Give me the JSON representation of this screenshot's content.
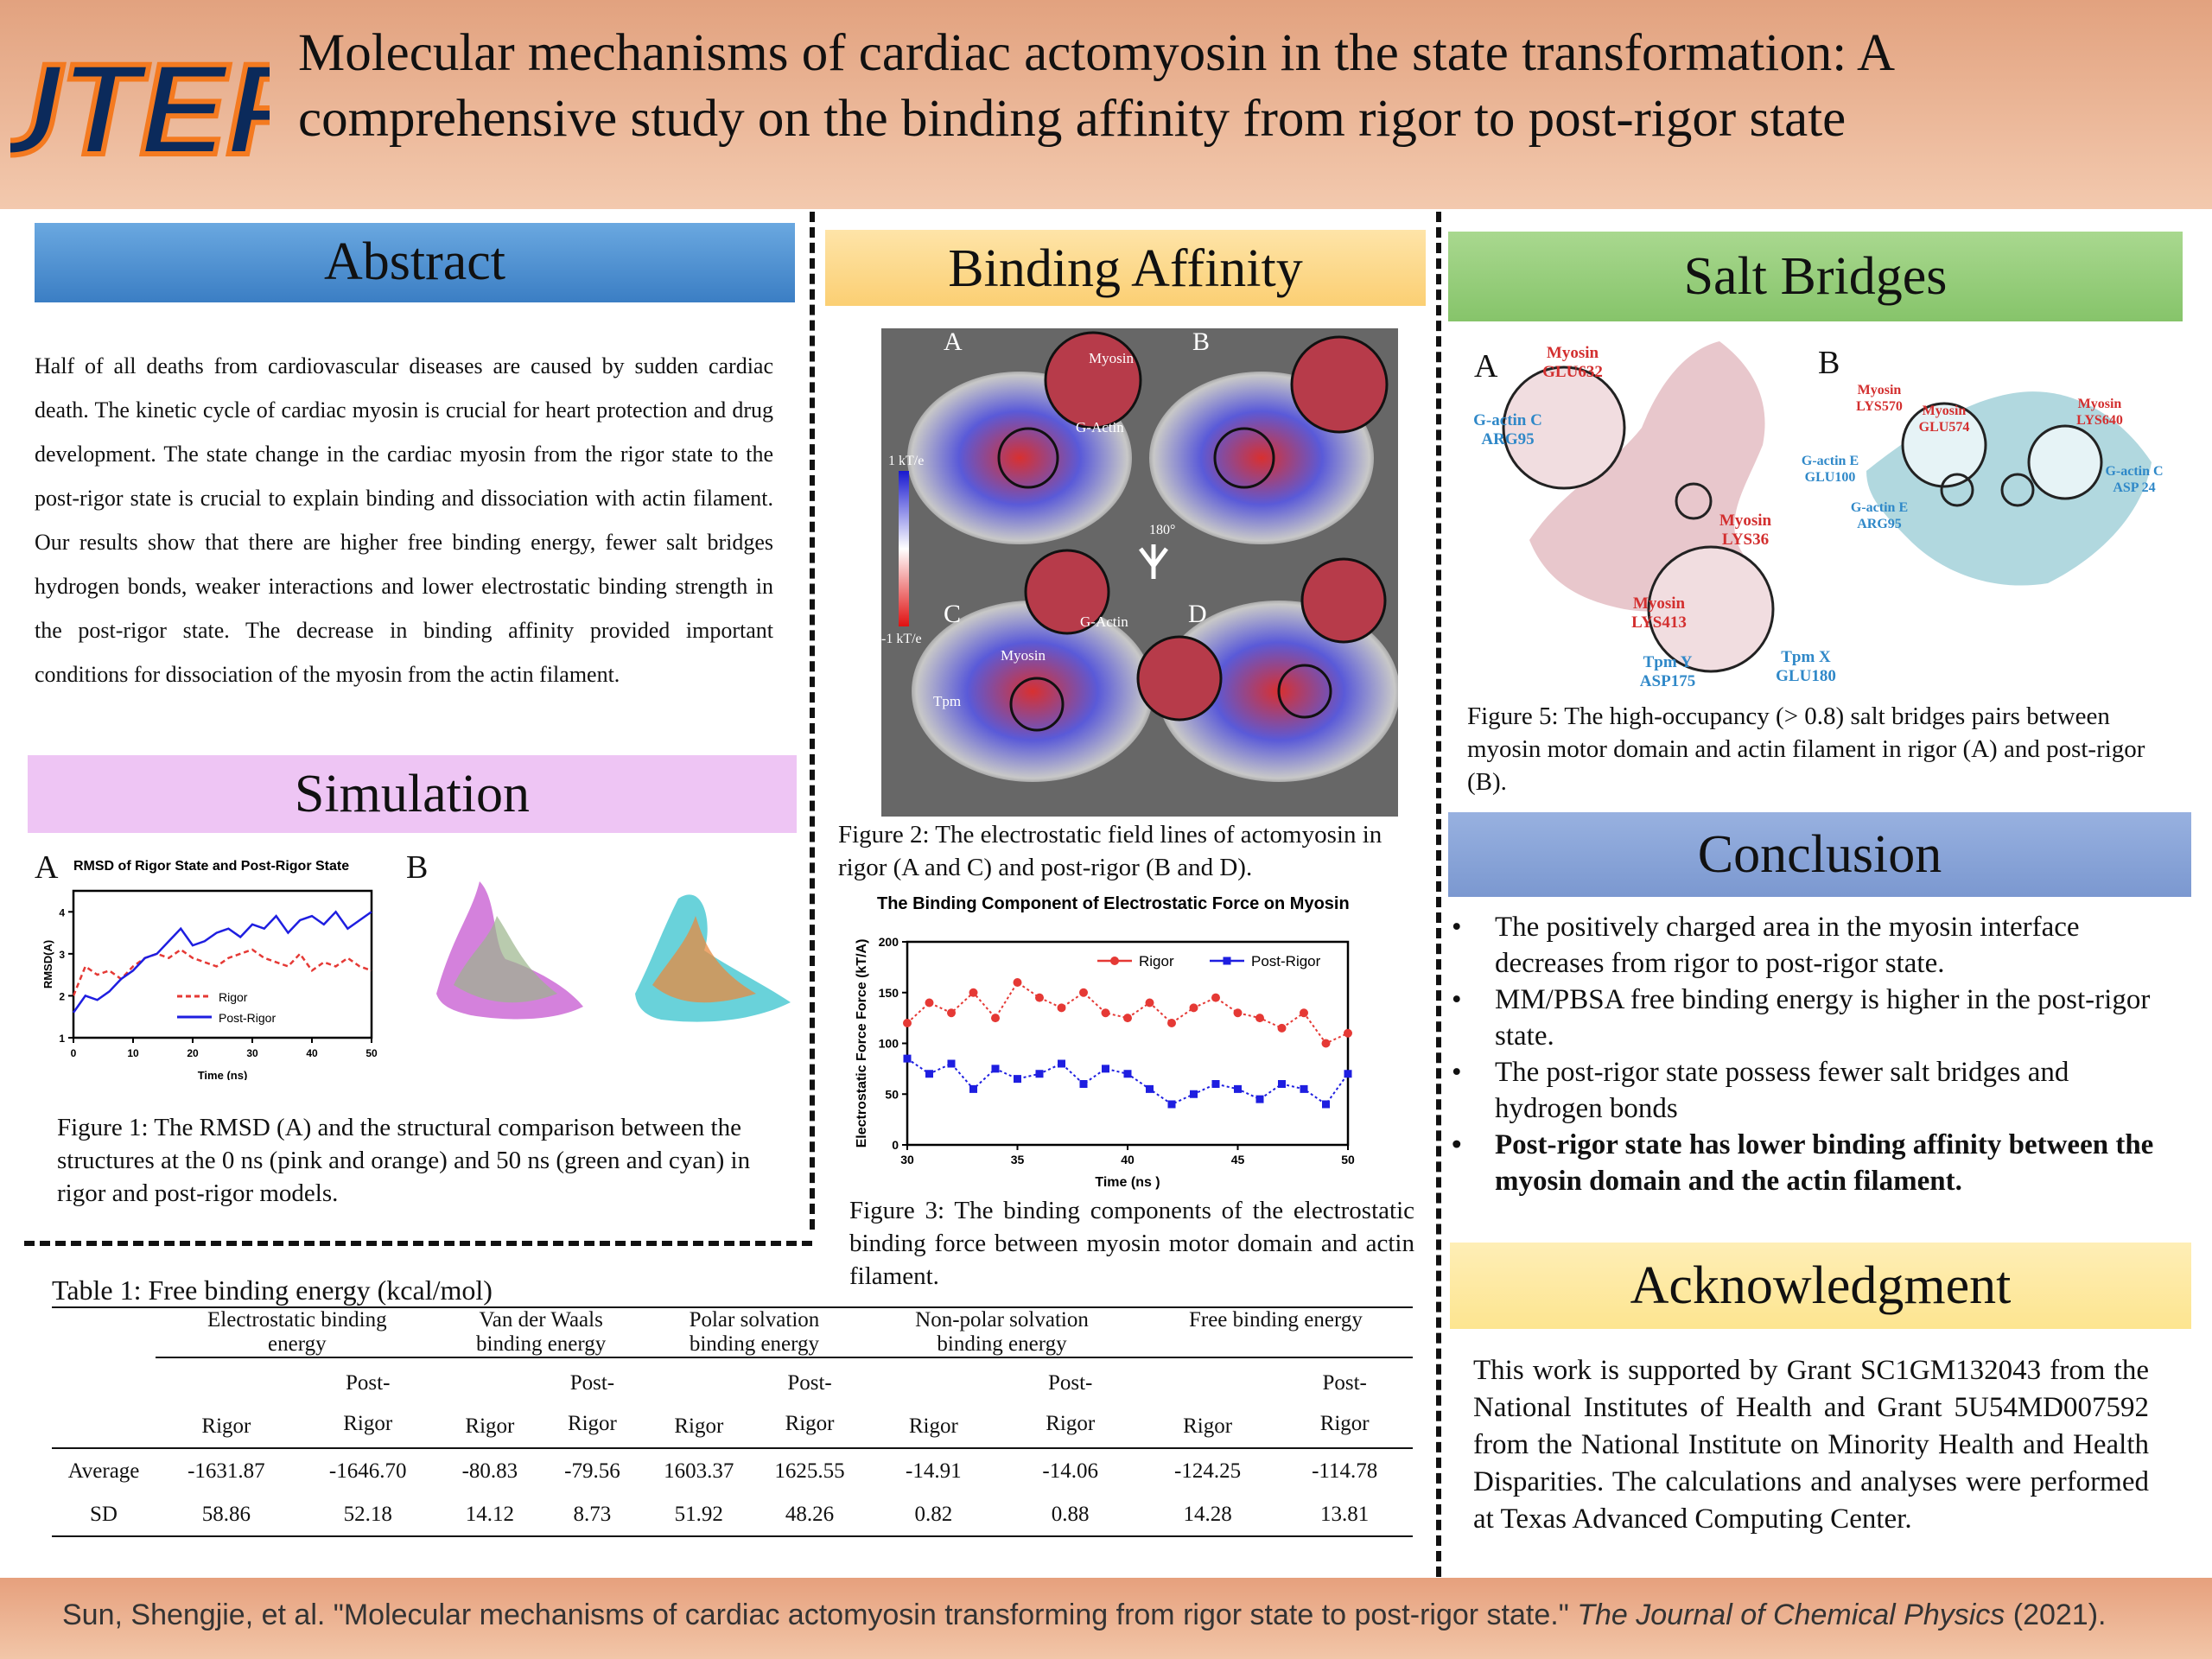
{
  "header": {
    "logo_text": "UTEP",
    "title_line1": "Molecular mechanisms of cardiac actomyosin in the state transformation: A",
    "title_line2": "comprehensive study on the binding affinity from rigor to post-rigor state"
  },
  "colors": {
    "abstract_band": "#5b9bd5",
    "simulation_band": "#eec5f4",
    "binding_band": "#fcd98e",
    "salt_band": "#9fd184",
    "conclusion_band": "#8ea9db",
    "ack_band": "#fde9a0",
    "rigor": "#e53935",
    "post_rigor": "#1e1ee0"
  },
  "abstract": {
    "heading": "Abstract",
    "text": "Half of all deaths from cardiovascular diseases are caused by sudden cardiac death. The kinetic cycle of cardiac myosin is crucial for heart protection and drug development. The state change in the cardiac myosin from the rigor state to the post-rigor state is crucial to explain binding and dissociation with actin filament. Our results show that there are higher free binding energy, fewer salt bridges hydrogen bonds, weaker interactions and lower electrostatic binding strength in the post-rigor state. The decrease in binding affinity provided important conditions for dissociation of the myosin from the actin filament."
  },
  "simulation": {
    "heading": "Simulation",
    "panel_a": "A",
    "panel_b": "B",
    "caption": "Figure 1: The RMSD (A) and the structural comparison between the structures at the 0 ns (pink and orange) and 50 ns (green and cyan) in rigor and post-rigor models."
  },
  "binding": {
    "heading": "Binding Affinity",
    "fig2_labels": {
      "a": "A",
      "b": "B",
      "c": "C",
      "d": "D",
      "myosin": "Myosin",
      "gactin": "G-Actin",
      "tpm": "Tpm",
      "scale_top": "1 kT/e",
      "scale_bot": "-1 kT/e",
      "rotation": "180°"
    },
    "fig2_caption": "Figure 2: The electrostatic field lines of actomyosin in rigor (A and C) and post-rigor (B and D).",
    "fig3_caption": "Figure 3: The binding components of the electrostatic binding force between myosin motor domain and actin filament."
  },
  "salt": {
    "heading": "Salt Bridges",
    "panel_a": "A",
    "panel_b": "B",
    "labels_a": {
      "myosin_glu": "Myosin\nGLU632",
      "gactin_arg": "G-actin C\nARG95",
      "myosin_lys36": "Myosin\nLYS36",
      "myosin_lys413": "Myosin\nLYS413",
      "tpm_y": "Tpm Y\nASP175",
      "tpm_x": "Tpm X\nGLU180"
    },
    "labels_b": {
      "myosin_lys570": "Myosin\nLYS570",
      "myosin_glu574": "Myosin\nGLU574",
      "myosin_lys640": "Myosin\nLYS640",
      "gactin_e_glu": "G-actin E\nGLU100",
      "gactin_e_arg": "G-actin E\nARG95",
      "gactin_c_asp": "G-actin C\nASP 24"
    },
    "caption": "Figure 5: The high-occupancy (> 0.8) salt bridges pairs between myosin motor domain and actin filament in rigor (A) and post-rigor (B)."
  },
  "conclusion": {
    "heading": "Conclusion",
    "items": [
      "The positively charged area in the myosin interface decreases from rigor to post-rigor state.",
      "MM/PBSA free binding energy is higher in the post-rigor state.",
      "The post-rigor state possess fewer salt bridges and hydrogen bonds",
      "Post-rigor state has lower binding affinity between the myosin domain and the actin filament."
    ]
  },
  "acknowledgment": {
    "heading": "Acknowledgment",
    "text": "This work is supported by Grant SC1GM132043 from the National Institutes of Health and Grant 5U54MD007592 from the National Institute on Minority Health and Health Disparities. The calculations and analyses were performed at Texas Advanced Computing Center."
  },
  "table": {
    "caption": "Table 1: Free binding energy (kcal/mol)",
    "groups": [
      {
        "line1": "Electrostatic binding",
        "line2": "energy"
      },
      {
        "line1": "Van der Waals",
        "line2": "binding energy"
      },
      {
        "line1": "Polar solvation",
        "line2": "binding energy"
      },
      {
        "line1": "Non-polar solvation",
        "line2": "binding energy"
      },
      {
        "line1": "Free binding energy",
        "line2": ""
      }
    ],
    "sub_rigor": "Rigor",
    "sub_post_1": "Post-",
    "sub_post_2": "Rigor",
    "rows": [
      {
        "label": "Average",
        "values": [
          "-1631.87",
          "-1646.70",
          "-80.83",
          "-79.56",
          "1603.37",
          "1625.55",
          "-14.91",
          "-14.06",
          "-124.25",
          "-114.78"
        ]
      },
      {
        "label": "SD",
        "values": [
          "58.86",
          "52.18",
          "14.12",
          "8.73",
          "51.92",
          "48.26",
          "0.82",
          "0.88",
          "14.28",
          "13.81"
        ]
      }
    ]
  },
  "footer": {
    "citation_main": "Sun, Shengjie, et al. \"Molecular mechanisms of cardiac actomyosin transforming from rigor state to post-rigor state.\" ",
    "citation_journal": "The Journal of Chemical Physics",
    "citation_year": " (2021)."
  },
  "chart_data": [
    {
      "type": "line",
      "title": "RMSD of Rigor State and Post-Rigor State",
      "xlabel": "Time (ns)",
      "ylabel": "RMSD(A)",
      "xlim": [
        0,
        50
      ],
      "ylim": [
        1,
        4.5
      ],
      "xticks": [
        "0",
        "10",
        "20",
        "30",
        "40",
        "50"
      ],
      "yticks": [
        "1",
        "2",
        "3",
        "4"
      ],
      "legend_position": "bottom-left",
      "x": [
        0,
        2,
        4,
        6,
        8,
        10,
        12,
        14,
        16,
        18,
        20,
        22,
        24,
        26,
        28,
        30,
        32,
        34,
        36,
        38,
        40,
        42,
        44,
        46,
        48,
        50
      ],
      "series": [
        {
          "name": "Rigor",
          "style": "dashed",
          "values": [
            2.0,
            2.7,
            2.5,
            2.6,
            2.4,
            2.7,
            2.9,
            3.0,
            2.9,
            3.1,
            2.9,
            2.8,
            2.7,
            2.9,
            3.0,
            3.1,
            2.9,
            2.8,
            2.7,
            3.0,
            2.6,
            2.8,
            2.7,
            2.9,
            2.7,
            2.6
          ]
        },
        {
          "name": "Post-Rigor",
          "style": "solid",
          "values": [
            1.6,
            2.0,
            1.9,
            2.1,
            2.4,
            2.6,
            2.9,
            3.0,
            3.3,
            3.6,
            3.2,
            3.3,
            3.5,
            3.6,
            3.4,
            3.7,
            3.6,
            3.9,
            3.5,
            3.8,
            3.9,
            3.7,
            4.0,
            3.6,
            3.8,
            4.0
          ]
        }
      ]
    },
    {
      "type": "line",
      "title": "The Binding Component of Electrostatic Force on Myosin",
      "xlabel": "Time (ns )",
      "ylabel": "Electrostatic Force Force (kT/A)",
      "xlim": [
        30,
        50
      ],
      "ylim": [
        0,
        200
      ],
      "xticks": [
        "30",
        "35",
        "40",
        "45",
        "50"
      ],
      "yticks": [
        "0",
        "50",
        "100",
        "150",
        "200"
      ],
      "legend_position": "top-right",
      "x": [
        30,
        31,
        32,
        33,
        34,
        35,
        36,
        37,
        38,
        39,
        40,
        41,
        42,
        43,
        44,
        45,
        46,
        47,
        48,
        49,
        50
      ],
      "series": [
        {
          "name": "Rigor",
          "values": [
            120,
            140,
            130,
            150,
            125,
            160,
            145,
            135,
            150,
            130,
            125,
            140,
            120,
            135,
            145,
            130,
            125,
            115,
            130,
            100,
            110
          ]
        },
        {
          "name": "Post-Rigor",
          "values": [
            85,
            70,
            80,
            55,
            75,
            65,
            70,
            80,
            60,
            75,
            70,
            55,
            40,
            50,
            60,
            55,
            45,
            60,
            55,
            40,
            70
          ]
        }
      ]
    }
  ]
}
